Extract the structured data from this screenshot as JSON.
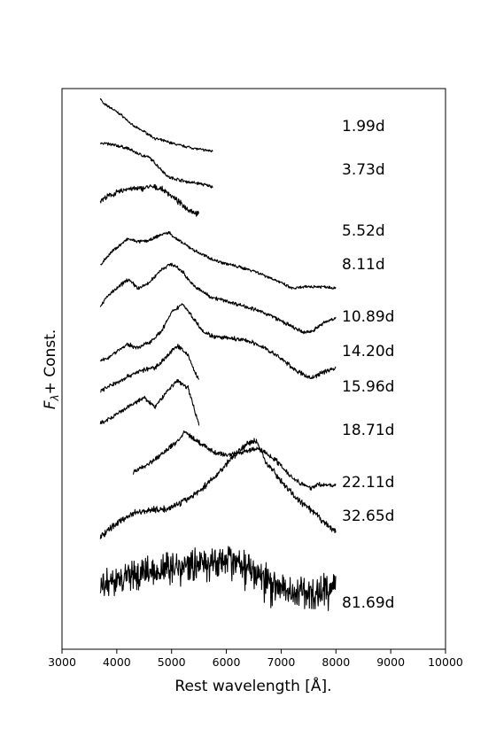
{
  "chart_data": {
    "type": "line",
    "title": "",
    "xlabel": "Rest wavelength [Å].",
    "ylabel_main": "F",
    "ylabel_sub": "λ",
    "ylabel_tail": "+ Const.",
    "xlim": [
      3000,
      10000
    ],
    "xticks": [
      3000,
      4000,
      5000,
      6000,
      7000,
      8000,
      9000,
      10000
    ],
    "grid": false,
    "legend": "none",
    "line_color": "#000000",
    "series": [
      {
        "label": "1.99d",
        "noise": 0.004,
        "x": [
          3700,
          3750,
          3900,
          4100,
          4300,
          4500,
          4700,
          4900,
          5100,
          5300,
          5500,
          5750
        ],
        "y": [
          0.96,
          0.948,
          0.938,
          0.922,
          0.9,
          0.888,
          0.873,
          0.867,
          0.86,
          0.855,
          0.85,
          0.846
        ]
      },
      {
        "label": "3.73d",
        "noise": 0.005,
        "x": [
          3700,
          3800,
          4000,
          4200,
          4400,
          4600,
          4800,
          4950,
          5100,
          5300,
          5500,
          5750
        ],
        "y": [
          0.865,
          0.862,
          0.858,
          0.852,
          0.84,
          0.832,
          0.808,
          0.79,
          0.786,
          0.78,
          0.777,
          0.77
        ]
      },
      {
        "label": "5.52d",
        "noise": 0.009,
        "x": [
          3700,
          3850,
          4000,
          4200,
          4400,
          4600,
          4800,
          4950,
          5100,
          5300,
          5500
        ],
        "y": [
          0.74,
          0.75,
          0.757,
          0.766,
          0.765,
          0.77,
          0.766,
          0.755,
          0.74,
          0.722,
          0.71
        ]
      },
      {
        "label": "8.11d",
        "noise": 0.005,
        "x": [
          3700,
          3800,
          3950,
          4200,
          4400,
          4600,
          4800,
          4950,
          5100,
          5300,
          5500,
          5800,
          6100,
          6500,
          6900,
          7200,
          7500,
          7800,
          8000
        ],
        "y": [
          0.602,
          0.617,
          0.635,
          0.658,
          0.652,
          0.655,
          0.667,
          0.672,
          0.657,
          0.642,
          0.628,
          0.612,
          0.602,
          0.59,
          0.57,
          0.552,
          0.556,
          0.556,
          0.553
        ]
      },
      {
        "label": "10.89d",
        "noise": 0.006,
        "x": [
          3700,
          3850,
          4000,
          4200,
          4400,
          4600,
          4800,
          5000,
          5200,
          5400,
          5700,
          6000,
          6400,
          6800,
          7200,
          7400,
          7550,
          7800,
          8000
        ],
        "y": [
          0.515,
          0.538,
          0.552,
          0.572,
          0.552,
          0.565,
          0.592,
          0.605,
          0.588,
          0.558,
          0.535,
          0.525,
          0.512,
          0.495,
          0.47,
          0.458,
          0.46,
          0.48,
          0.49
        ]
      },
      {
        "label": "14.20d",
        "noise": 0.007,
        "x": [
          3700,
          3850,
          4000,
          4200,
          4400,
          4600,
          4800,
          5000,
          5200,
          5400,
          5600,
          5800,
          6100,
          6400,
          6700,
          7000,
          7300,
          7550,
          7800,
          8000
        ],
        "y": [
          0.395,
          0.405,
          0.418,
          0.432,
          0.425,
          0.438,
          0.458,
          0.5,
          0.52,
          0.488,
          0.458,
          0.448,
          0.445,
          0.44,
          0.425,
          0.402,
          0.374,
          0.36,
          0.375,
          0.382
        ]
      },
      {
        "label": "15.96d",
        "noise": 0.007,
        "x": [
          3700,
          3900,
          4100,
          4300,
          4500,
          4700,
          4900,
          5100,
          5300,
          5400,
          5500
        ],
        "y": [
          0.333,
          0.345,
          0.357,
          0.37,
          0.378,
          0.383,
          0.405,
          0.43,
          0.41,
          0.38,
          0.355
        ]
      },
      {
        "label": "18.71d",
        "noise": 0.007,
        "x": [
          3700,
          3900,
          4100,
          4300,
          4500,
          4700,
          4900,
          5100,
          5300,
          5400,
          5500
        ],
        "y": [
          0.263,
          0.275,
          0.29,
          0.305,
          0.318,
          0.298,
          0.33,
          0.355,
          0.34,
          0.3,
          0.262
        ]
      },
      {
        "label": "22.11d",
        "noise": 0.008,
        "x": [
          4300,
          4500,
          4700,
          4900,
          5100,
          5250,
          5500,
          5800,
          6000,
          6300,
          6600,
          6900,
          7200,
          7500,
          7700,
          8000
        ],
        "y": [
          0.158,
          0.172,
          0.186,
          0.205,
          0.225,
          0.245,
          0.222,
          0.2,
          0.196,
          0.202,
          0.21,
          0.185,
          0.148,
          0.125,
          0.132,
          0.13
        ]
      },
      {
        "label": "32.65d",
        "noise": 0.01,
        "x": [
          3700,
          3850,
          4000,
          4300,
          4600,
          4900,
          5200,
          5500,
          5800,
          6100,
          6400,
          6550,
          6700,
          7000,
          7300,
          7600,
          7800,
          8000
        ],
        "y": [
          0.02,
          0.035,
          0.05,
          0.072,
          0.078,
          0.08,
          0.095,
          0.118,
          0.15,
          0.19,
          0.222,
          0.225,
          0.185,
          0.14,
          0.1,
          0.072,
          0.05,
          0.03
        ]
      },
      {
        "label": "81.69d",
        "noise": 0.048,
        "x": [
          3700,
          4000,
          4500,
          5000,
          5500,
          6000,
          6300,
          6700,
          7000,
          7500,
          8000
        ],
        "y": [
          -0.085,
          -0.07,
          -0.055,
          -0.045,
          -0.035,
          -0.03,
          -0.035,
          -0.07,
          -0.085,
          -0.105,
          -0.08
        ]
      }
    ]
  }
}
